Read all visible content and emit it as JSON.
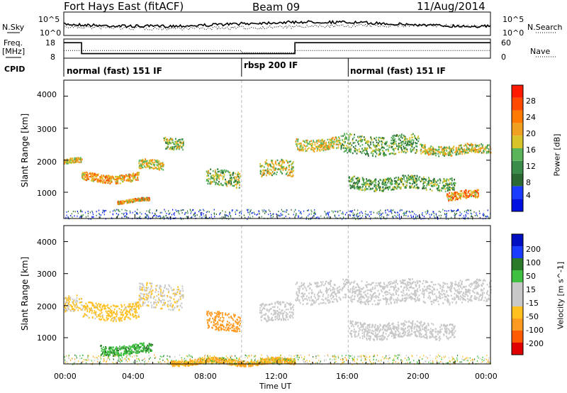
{
  "header": {
    "station": "Fort Hays East (fitACF)",
    "beam": "Beam 09",
    "date": "11/Aug/2014"
  },
  "side_labels": {
    "nsky": "N.Sky",
    "nsearch": "N.Search",
    "freq": "Freq.",
    "freq_unit": "[MHz]",
    "nave": "Nave",
    "cpid": "CPID"
  },
  "noise_axis": {
    "left_ticks": [
      "10^5",
      "10^0"
    ],
    "right_ticks": [
      "10^5",
      "10^0"
    ]
  },
  "freq_axis": {
    "left_ticks": [
      "18",
      "8"
    ],
    "right_ticks": [
      "60",
      "0"
    ]
  },
  "cpid_segments": [
    {
      "label": "normal (fast) 151 IF",
      "start_hour": 0
    },
    {
      "label": "rbsp 200 IF",
      "start_hour": 10
    },
    {
      "label": "normal (fast) 151 IF",
      "start_hour": 16
    }
  ],
  "colors": {
    "power_scale": [
      "#0010e0",
      "#1a3cff",
      "#2a6a32",
      "#3a8c4a",
      "#5ab55a",
      "#d7c32a",
      "#f0a020",
      "#ff7a00",
      "#ff4a00",
      "#ff1a00"
    ],
    "velocity_scale": [
      "#e00000",
      "#ff5a00",
      "#ff9a20",
      "#ffc020",
      "#c8c8c8",
      "#c8c8c8",
      "#40c040",
      "#2a7a2a",
      "#1a3cff",
      "#0010c0"
    ],
    "frame": "#000000"
  },
  "chart_data": [
    {
      "type": "heatmap",
      "title": "",
      "xlabel": "Time UT",
      "ylabel": "Slant Range [km]",
      "x_range_hours": [
        0,
        24
      ],
      "y_range_km": [
        180,
        4500
      ],
      "x_tick_labels": [
        "00:00",
        "04:00",
        "08:00",
        "12:00",
        "16:00",
        "20:00",
        "00:00"
      ],
      "y_tick_labels": [
        "1000",
        "2000",
        "3000",
        "4000"
      ],
      "colorbar": {
        "label": "Power [dB]",
        "ticks": [
          "4",
          "8",
          "12",
          "16",
          "20",
          "24",
          "28"
        ],
        "range": [
          0,
          30
        ]
      },
      "scatter_bands": [
        {
          "t0": 0.0,
          "t1": 1.0,
          "r0": 1900,
          "r1": 2050,
          "v0": 12,
          "v1": 24
        },
        {
          "t0": 1.0,
          "t1": 4.2,
          "r0": 1350,
          "r1": 1600,
          "v0": 14,
          "v1": 26
        },
        {
          "t0": 4.2,
          "t1": 5.6,
          "r0": 1700,
          "r1": 2000,
          "v0": 12,
          "v1": 22
        },
        {
          "t0": 5.6,
          "t1": 6.7,
          "r0": 2400,
          "r1": 2750,
          "v0": 8,
          "v1": 20
        },
        {
          "t0": 3.0,
          "t1": 4.8,
          "r0": 700,
          "r1": 800,
          "v0": 12,
          "v1": 28
        },
        {
          "t0": 8.0,
          "t1": 9.9,
          "r0": 1200,
          "r1": 1700,
          "v0": 8,
          "v1": 20
        },
        {
          "t0": 11.0,
          "t1": 12.9,
          "r0": 1500,
          "r1": 2000,
          "v0": 10,
          "v1": 22
        },
        {
          "t0": 13.0,
          "t1": 15.5,
          "r0": 2350,
          "r1": 2700,
          "v0": 12,
          "v1": 22
        },
        {
          "t0": 15.5,
          "t1": 20.0,
          "r0": 2200,
          "r1": 2800,
          "v0": 6,
          "v1": 18
        },
        {
          "t0": 20.0,
          "t1": 24.0,
          "r0": 2200,
          "r1": 2500,
          "v0": 10,
          "v1": 22
        },
        {
          "t0": 16.0,
          "t1": 22.0,
          "r0": 1100,
          "r1": 1500,
          "v0": 6,
          "v1": 18
        },
        {
          "t0": 21.5,
          "t1": 23.3,
          "r0": 800,
          "r1": 1050,
          "v0": 14,
          "v1": 28
        }
      ]
    },
    {
      "type": "heatmap",
      "title": "",
      "xlabel": "Time UT",
      "ylabel": "Slant Range [km]",
      "x_range_hours": [
        0,
        24
      ],
      "y_range_km": [
        180,
        4500
      ],
      "x_tick_labels": [
        "00:00",
        "04:00",
        "08:00",
        "12:00",
        "16:00",
        "20:00",
        "00:00"
      ],
      "y_tick_labels": [
        "1000",
        "2000",
        "3000",
        "4000"
      ],
      "colorbar": {
        "label": "Velocity [m s^-1]",
        "ticks": [
          "-200",
          "-100",
          "-50",
          "-15",
          "15",
          "50",
          "100",
          "200"
        ],
        "range": [
          -250,
          250
        ]
      },
      "scatter_bands": [
        {
          "t0": 0.0,
          "t1": 1.0,
          "r0": 1800,
          "r1": 2300,
          "v0": -40,
          "v1": 0
        },
        {
          "t0": 1.0,
          "t1": 4.2,
          "r0": 1600,
          "r1": 2100,
          "v0": -50,
          "v1": -10
        },
        {
          "t0": 4.2,
          "t1": 6.7,
          "r0": 1900,
          "r1": 2700,
          "v0": -30,
          "v1": 10
        },
        {
          "t0": 8.0,
          "t1": 9.9,
          "r0": 1200,
          "r1": 1800,
          "v0": -100,
          "v1": -50
        },
        {
          "t0": 11.0,
          "t1": 12.9,
          "r0": 1500,
          "r1": 2100,
          "v0": -10,
          "v1": 10
        },
        {
          "t0": 13.0,
          "t1": 24.0,
          "r0": 2100,
          "r1": 2800,
          "v0": -10,
          "v1": 10
        },
        {
          "t0": 16.0,
          "t1": 22.0,
          "r0": 1000,
          "r1": 1500,
          "v0": -10,
          "v1": 10
        },
        {
          "t0": 2.0,
          "t1": 5.0,
          "r0": 500,
          "r1": 800,
          "v0": 20,
          "v1": 60
        },
        {
          "t0": 6.0,
          "t1": 13.0,
          "r0": 180,
          "r1": 350,
          "v0": -70,
          "v1": -20
        }
      ]
    }
  ],
  "noise_series": {
    "nsky_level": 0.55,
    "nsearch_level": 0.45,
    "freq_steps": [
      {
        "t0": 0,
        "t1": 1.0,
        "value": 17
      },
      {
        "t0": 1.0,
        "t1": 13.0,
        "value": 10
      },
      {
        "t0": 13.0,
        "t1": 24,
        "value": 17
      }
    ],
    "nave_steps": [
      {
        "t0": 0,
        "t1": 10.0,
        "value": 22
      },
      {
        "t0": 10.0,
        "t1": 13.0,
        "value": 14
      },
      {
        "t0": 13.0,
        "t1": 24,
        "value": 22
      }
    ]
  }
}
